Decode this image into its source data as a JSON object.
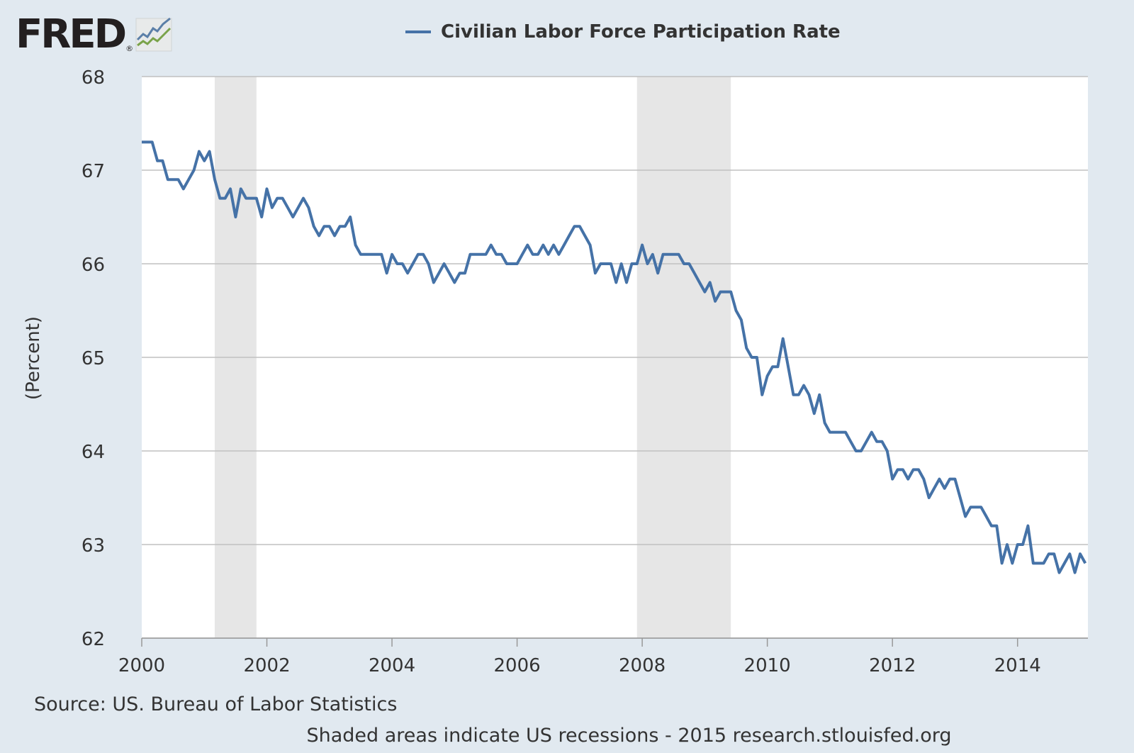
{
  "brand": {
    "name": "FRED",
    "reg_mark": "®"
  },
  "legend": {
    "label": "Civilian Labor Force Participation Rate",
    "color": "#4572a7"
  },
  "source_text": "Source: US. Bureau of Labor Statistics",
  "footer_text": "Shaded areas indicate US recessions - 2015 research.stlouisfed.org",
  "colors": {
    "background": "#e1e9f0",
    "plot_bg": "#ffffff",
    "grid": "#c0c0c0",
    "recession": "#e6e6e6",
    "line": "#4572a7"
  },
  "chart_data": {
    "type": "line",
    "title": "",
    "xlabel": "",
    "ylabel": "(Percent)",
    "xlim": [
      2000.0,
      2015.125
    ],
    "ylim": [
      62,
      68
    ],
    "grid": true,
    "legend_position": "top-center",
    "x_ticks": [
      "2000",
      "2002",
      "2004",
      "2006",
      "2008",
      "2010",
      "2012",
      "2014"
    ],
    "y_ticks": [
      "62",
      "63",
      "64",
      "65",
      "66",
      "67",
      "68"
    ],
    "recessions": [
      {
        "start": "2001-03",
        "end": "2001-11"
      },
      {
        "start": "2007-12",
        "end": "2009-06"
      }
    ],
    "series": [
      {
        "name": "Civilian Labor Force Participation Rate",
        "start": "2000-01",
        "frequency": "monthly",
        "values": [
          67.3,
          67.3,
          67.3,
          67.1,
          67.1,
          66.9,
          66.9,
          66.9,
          66.8,
          66.9,
          67.0,
          67.2,
          67.1,
          67.2,
          66.9,
          66.7,
          66.7,
          66.8,
          66.5,
          66.8,
          66.7,
          66.7,
          66.7,
          66.5,
          66.8,
          66.6,
          66.7,
          66.7,
          66.6,
          66.5,
          66.6,
          66.7,
          66.6,
          66.4,
          66.3,
          66.4,
          66.4,
          66.3,
          66.4,
          66.4,
          66.5,
          66.2,
          66.1,
          66.1,
          66.1,
          66.1,
          66.1,
          65.9,
          66.1,
          66.0,
          66.0,
          65.9,
          66.0,
          66.1,
          66.1,
          66.0,
          65.8,
          65.9,
          66.0,
          65.9,
          65.8,
          65.9,
          65.9,
          66.1,
          66.1,
          66.1,
          66.1,
          66.2,
          66.1,
          66.1,
          66.0,
          66.0,
          66.0,
          66.1,
          66.2,
          66.1,
          66.1,
          66.2,
          66.1,
          66.2,
          66.1,
          66.2,
          66.3,
          66.4,
          66.4,
          66.3,
          66.2,
          65.9,
          66.0,
          66.0,
          66.0,
          65.8,
          66.0,
          65.8,
          66.0,
          66.0,
          66.2,
          66.0,
          66.1,
          65.9,
          66.1,
          66.1,
          66.1,
          66.1,
          66.0,
          66.0,
          65.9,
          65.8,
          65.7,
          65.8,
          65.6,
          65.7,
          65.7,
          65.7,
          65.5,
          65.4,
          65.1,
          65.0,
          65.0,
          64.6,
          64.8,
          64.9,
          64.9,
          65.2,
          64.9,
          64.6,
          64.6,
          64.7,
          64.6,
          64.4,
          64.6,
          64.3,
          64.2,
          64.2,
          64.2,
          64.2,
          64.1,
          64.0,
          64.0,
          64.1,
          64.2,
          64.1,
          64.1,
          64.0,
          63.7,
          63.8,
          63.8,
          63.7,
          63.8,
          63.8,
          63.7,
          63.5,
          63.6,
          63.7,
          63.6,
          63.7,
          63.7,
          63.5,
          63.3,
          63.4,
          63.4,
          63.4,
          63.3,
          63.2,
          63.2,
          62.8,
          63.0,
          62.8,
          63.0,
          63.0,
          63.2,
          62.8,
          62.8,
          62.8,
          62.9,
          62.9,
          62.7,
          62.8,
          62.9,
          62.7,
          62.9,
          62.8
        ]
      }
    ]
  },
  "source_note": "Source: US. Bureau of Labor Statistics"
}
